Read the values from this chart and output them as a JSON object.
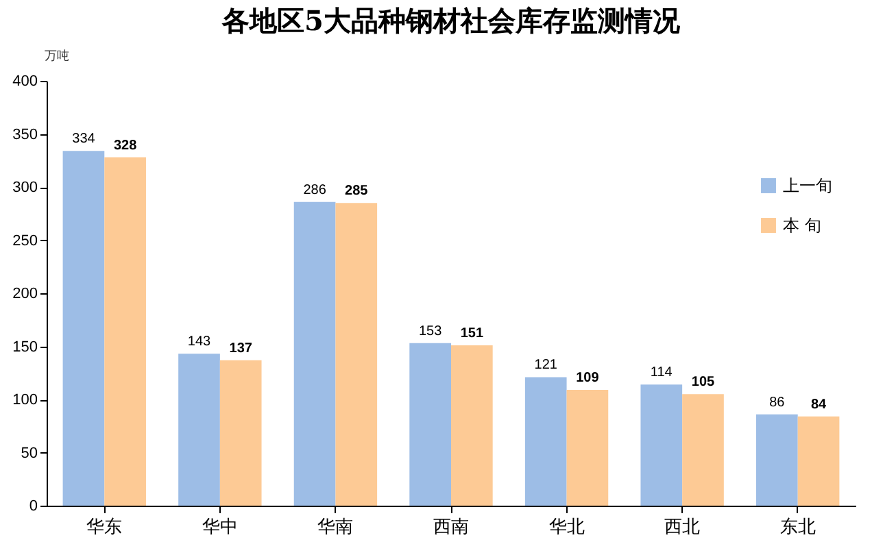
{
  "chart_data": {
    "type": "bar",
    "title": "各地区5大品种钢材社会库存监测情况",
    "ylabel": "万吨",
    "categories": [
      "华东",
      "华中",
      "华南",
      "西南",
      "华北",
      "西北",
      "东北"
    ],
    "series": [
      {
        "name": "上一旬",
        "color": "#9dbde6",
        "values": [
          334,
          143,
          286,
          153,
          121,
          114,
          86
        ]
      },
      {
        "name": "本  旬",
        "color": "#fdca95",
        "values": [
          328,
          137,
          285,
          151,
          109,
          105,
          84
        ]
      }
    ],
    "ylim": [
      0,
      400
    ],
    "yticks": [
      0,
      50,
      100,
      150,
      200,
      250,
      300,
      350,
      400
    ],
    "grid": false,
    "legend": "right",
    "data_labels": true
  }
}
